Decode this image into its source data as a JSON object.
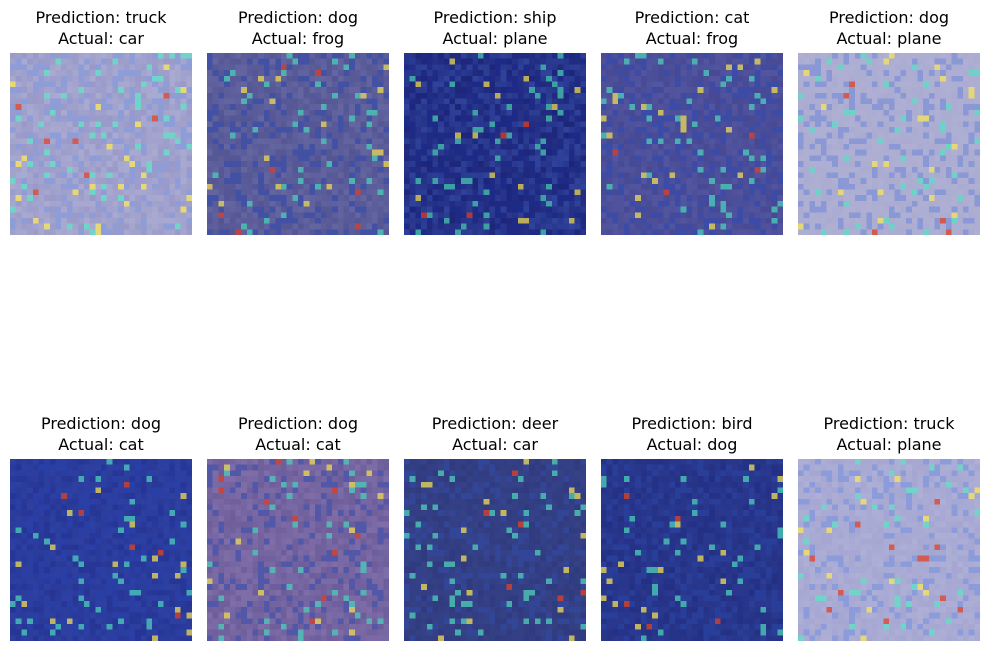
{
  "figure": {
    "panels": [
      {
        "prediction": "Prediction: truck",
        "actual": "Actual: car",
        "base": "#8e8fc4",
        "bg": "#b9b9d8"
      },
      {
        "prediction": "Prediction: dog",
        "actual": "Actual: frog",
        "base": "#6f71a8",
        "bg": "#45468a"
      },
      {
        "prediction": "Prediction: ship",
        "actual": "Actual: plane",
        "base": "#3d56b0",
        "bg": "#0b0b5c"
      },
      {
        "prediction": "Prediction: cat",
        "actual": "Actual: frog",
        "base": "#5b5ea6",
        "bg": "#3b3d8a"
      },
      {
        "prediction": "Prediction: dog",
        "actual": "Actual: plane",
        "base": "#a8a9cf",
        "bg": "#b2b3d6"
      },
      {
        "prediction": "Prediction: dog",
        "actual": "Actual: cat",
        "base": "#3349a8",
        "bg": "#1f2a8c"
      },
      {
        "prediction": "Prediction: dog",
        "actual": "Actual: cat",
        "base": "#8a78b0",
        "bg": "#5d4f8f"
      },
      {
        "prediction": "Prediction: deer",
        "actual": "Actual: car",
        "base": "#39488f",
        "bg": "#2c3375"
      },
      {
        "prediction": "Prediction: bird",
        "actual": "Actual: dog",
        "base": "#2f3f98",
        "bg": "#1d2878"
      },
      {
        "prediction": "Prediction: truck",
        "actual": "Actual: plane",
        "base": "#9fa1cf",
        "bg": "#b6b7da"
      }
    ],
    "colors": {
      "heat_low": "#3e66d6",
      "heat_mid": "#52e0c2",
      "heat_high": "#f5e35a",
      "heat_peak": "#d9452e"
    }
  }
}
